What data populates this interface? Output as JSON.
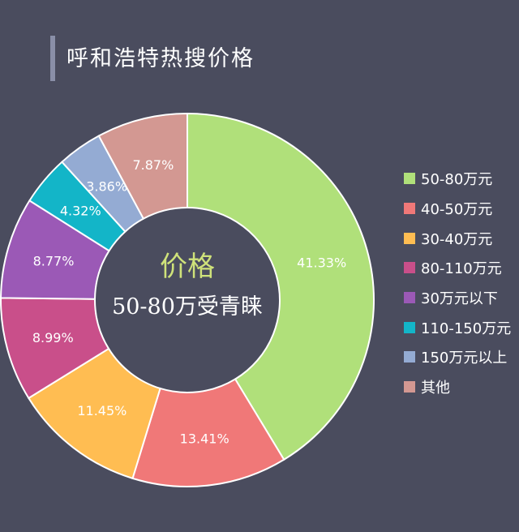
{
  "title": "呼和浩特热搜价格",
  "center": {
    "line1": "价格",
    "line2": "50-80万受青睐",
    "line1_color": "#cfe27a",
    "line2_color": "#ffffff"
  },
  "chart_data": {
    "type": "pie",
    "donut": true,
    "legend_position": "right",
    "categories": [
      "50-80万元",
      "40-50万元",
      "30-40万元",
      "80-110万元",
      "30万元以下",
      "110-150万元",
      "150万元以上",
      "其他"
    ],
    "values": [
      41.33,
      13.41,
      11.45,
      8.99,
      8.77,
      4.32,
      3.86,
      7.87
    ],
    "labels": [
      "41.33%",
      "13.41%",
      "11.45%",
      "8.99%",
      "8.77%",
      "4.32%",
      "3.86%",
      "7.87%"
    ],
    "colors": [
      "#b0e07a",
      "#f07878",
      "#ffbd52",
      "#c94f8a",
      "#9b59b6",
      "#13b5c8",
      "#94abd3",
      "#d39892"
    ]
  }
}
